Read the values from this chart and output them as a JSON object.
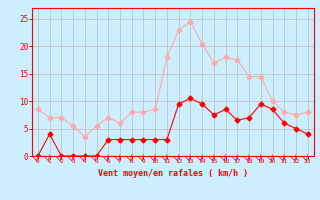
{
  "x": [
    0,
    1,
    2,
    3,
    4,
    5,
    6,
    7,
    8,
    9,
    10,
    11,
    12,
    13,
    14,
    15,
    16,
    17,
    18,
    19,
    20,
    21,
    22,
    23
  ],
  "y_mean": [
    0,
    4,
    0,
    0,
    0,
    0,
    3,
    3,
    3,
    3,
    3,
    3,
    9.5,
    10.5,
    9.5,
    7.5,
    8.5,
    6.5,
    7,
    9.5,
    8.5,
    6,
    5,
    4
  ],
  "y_gust": [
    8.5,
    7,
    7,
    5.5,
    3.5,
    5.5,
    7,
    6,
    8,
    8,
    8.5,
    18,
    23,
    24.5,
    20.5,
    17,
    18,
    17.5,
    14.5,
    14.5,
    10,
    8,
    7.5,
    8
  ],
  "xlabel": "Vent moyen/en rafales ( km/h )",
  "ylim": [
    0,
    27
  ],
  "xlim": [
    -0.5,
    23.5
  ],
  "yticks": [
    0,
    5,
    10,
    15,
    20,
    25
  ],
  "xticks": [
    0,
    1,
    2,
    3,
    4,
    5,
    6,
    7,
    8,
    9,
    10,
    11,
    12,
    13,
    14,
    15,
    16,
    17,
    18,
    19,
    20,
    21,
    22,
    23
  ],
  "color_mean": "#ff0000",
  "color_gust": "#ffaaaa",
  "bg_color": "#cceeff",
  "grid_color": "#bbbbbb",
  "line_width": 0.8,
  "marker_size": 2.5
}
